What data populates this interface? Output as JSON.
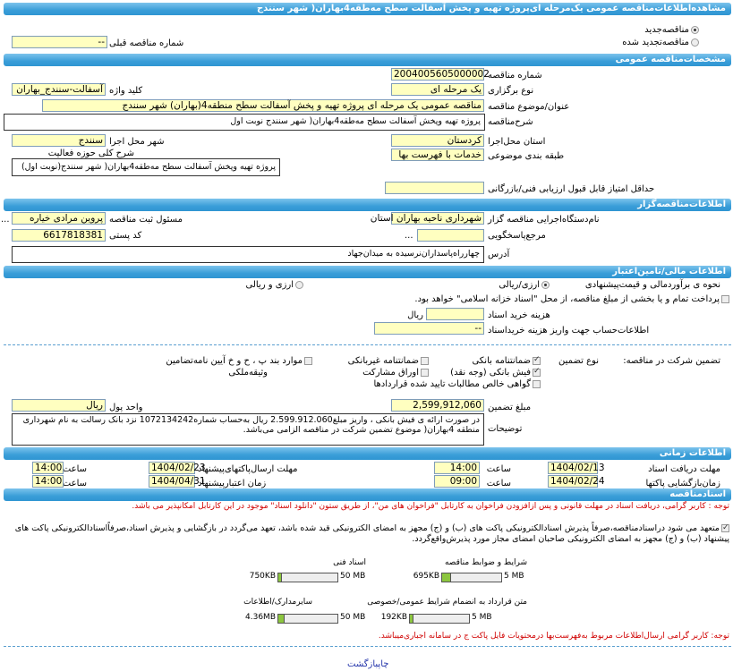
{
  "title": "مشاهده‌اطلاعات‌مناقصه عمومی یک‌مرحله ای‌پروژه تهیه و پخش آسفالت سطح مه‌طقه4بهاران( شهر سنندج",
  "tender_type": {
    "new": "مناقصه‌جدید",
    "renewed": "مناقصه‌تجدید شده",
    "new_selected": true,
    "prev_label": "شماره مناقصه قبلی",
    "prev_value": "--"
  },
  "general": {
    "header": "مشخصات‌مناقصه عمومی",
    "number_label": "شماره مناقصه",
    "number": "2004005605000002",
    "holding_label": "نوع برگزاری",
    "holding": "یک مرحله ای",
    "keyword_label": "کلید واژه",
    "keyword": "آسفالت-سنندج_بهاران",
    "subject_label": "عنوان/موضوع مناقصه",
    "subject": "مناقصه عمومی یک مرحله ای پروژه تهیه و پخش آسفالت سطح منطقه4(بهاران) شهر سنندج",
    "desc_label": "شرح‌مناقصه",
    "desc": "پروژه تهیه وپخش آسفالت سطح مه‌طقه4بهاران( شهر سنندج نوبت اول",
    "province_label": "استان محل‌اجرا",
    "province": "کردستان",
    "city_label": "شهر محل اجرا",
    "city": "سنندج",
    "category_label": "طبقه بندی موضوعی",
    "category": "خدمات با فهرست بها",
    "activity_label": "شرح کلی حوزه فعالیت",
    "activity": "پروژه تهیه وپخش آسفالت سطح مه‌طقه4بهاران( شهر سنندج(نوبت اول)",
    "min_score_label": "حداقل امتیاز قابل قبول ارزیابی فنی/بازرگانی",
    "min_score": ""
  },
  "org": {
    "header": "اطلاعات‌مناقصه‌گزار",
    "name_label": "نام‌دستگاه‌اجرایی مناقصه گزار",
    "name": "شهرداری ناحیه بهاران استان",
    "officer_label": "مسئول ثبت مناقصه",
    "officer": "پروین مرادی خیاره",
    "ref_label": "مرجع‌پاسخگویی",
    "ref": "",
    "more": "...",
    "postal_label": "کد پستی",
    "postal": "6617818381",
    "address_label": "آدرس",
    "address": "چهارراه‌پاسداران‌نرسیده به میدان‌جهاد"
  },
  "finance": {
    "header": "اطلاعات مالی/تامین‌اعتبار",
    "estimate_label": "نحوه ی برآوردمالی و قیمت‌پیشنهادی",
    "opt1": "ارزی/ریالی",
    "opt2": "ارزی و ریالی",
    "treasury": "پرداخت تمام و یا بخشی از مبلغ مناقصه، از محل \"اسناد خزانه اسلامی\" خواهد بود.",
    "doc_cost_label": "هزینه خرید اسناد",
    "doc_cost": "",
    "rial": "ریال",
    "account_label": "اطلاعات‌حساب جهت واریز هزینه خریداسناد",
    "account": "--",
    "guarantee_label": "تضمین شرکت در مناقصه:",
    "guarantee_type_label": "نوع تضمین",
    "g_bank": "ضمانتنامه بانکی",
    "g_nonbank": "ضمانتنامه غیربانکی",
    "g_items": "موارد بند پ ، ح و خ آیین نامه‌تضامین",
    "g_cash": "فیش بانکی (وجه نقد)",
    "g_bonds": "اوراق مشارکت",
    "g_property": "وثیقه‌ملکی",
    "g_cert": "گواهی خالص مطالبات تایید شده قراردادها",
    "amount_label": "مبلغ تضمین",
    "amount": "2,599,912,060",
    "currency_label": "واحد پول",
    "currency": "ریال",
    "notes_label": "توضیحات",
    "notes": "در صورت ارائه ی فیش بانکی ، واریز مبلغ2.599.912.060 ریال به‌حساب شماره1072134242 نزد بانک رسالت به نام شهرداری منطقه 4بهاران( موضوع تضمین شرکت در مناقصه الزامی می‌باشد."
  },
  "timing": {
    "header": "اطلاعات زمانی",
    "doc_deadline_label": "مهلت دریافت اسناد",
    "doc_deadline": "1404/02/13",
    "doc_time": "14:00",
    "send_label": "مهلت ارسال‌پاکتهای‌پیشنهاد",
    "send_date": "1404/02/23",
    "send_time": "14:00",
    "open_label": "زمان‌بازگشایی پاکتها",
    "open_date": "1404/02/24",
    "open_time": "09:00",
    "valid_label": "زمان اعتبارپیشنهاد",
    "valid_date": "1404/04/31",
    "valid_time": "14:00",
    "time_label": "ساعت"
  },
  "docs": {
    "header": "اسنادمناقصه",
    "note": "توجه : کاربر گرامی، دریافت اسناد در مهلت قانونی و پس ازافزودن فراخوان به کارتابل \"فراخوان های من\"، از طریق ستون \"دانلود اسناد\" موجود در این کارتابل امکانپذیر می باشد.",
    "commit": "متعهد می شود دراسنادمناقصه،صرفاً پذیرش اسنادالکترونیکی پاکت های (ب) و (ج) مجهز به امضای الکترونیکی قید شده باشد، تعهد می‌گردد در بازگشایی و پذیرش اسناد،صرفاًاسنادالکترونیکی پاکت های پیشنهاد (ب) و (ج) مجهز به امضای الکترونیکی صاحبان امضای مجاز مورد پذیرش‌واقع‌گردد.",
    "files": [
      {
        "label": "شرایط و ضوابط مناقصه",
        "size": "695KB",
        "max": "5 MB",
        "fraction": 0.136
      },
      {
        "label": "اسناد فنی",
        "size": "750KB",
        "max": "50 MB",
        "fraction": 0.015
      },
      {
        "label": "متن قرارداد به انضمام شرایط عمومی/خصوصی",
        "size": "192KB",
        "max": "5 MB",
        "fraction": 0.0375
      },
      {
        "label": "سایرمدارک/اطلاعات",
        "size": "4.36MB",
        "max": "50 MB",
        "fraction": 0.087
      }
    ],
    "note2": "توجه: کاربر گرامی ارسال‌اطلاعات مربوط به‌فهرست‌بها درمحتویات فایل پاکت ج در سامانه اجباری‌میباشد."
  },
  "footer": {
    "print": "چاپ",
    "back": "بازگشت"
  },
  "colors": {
    "header": "#3a9ed8",
    "input": "#ffffc0",
    "note": "#d00000"
  }
}
